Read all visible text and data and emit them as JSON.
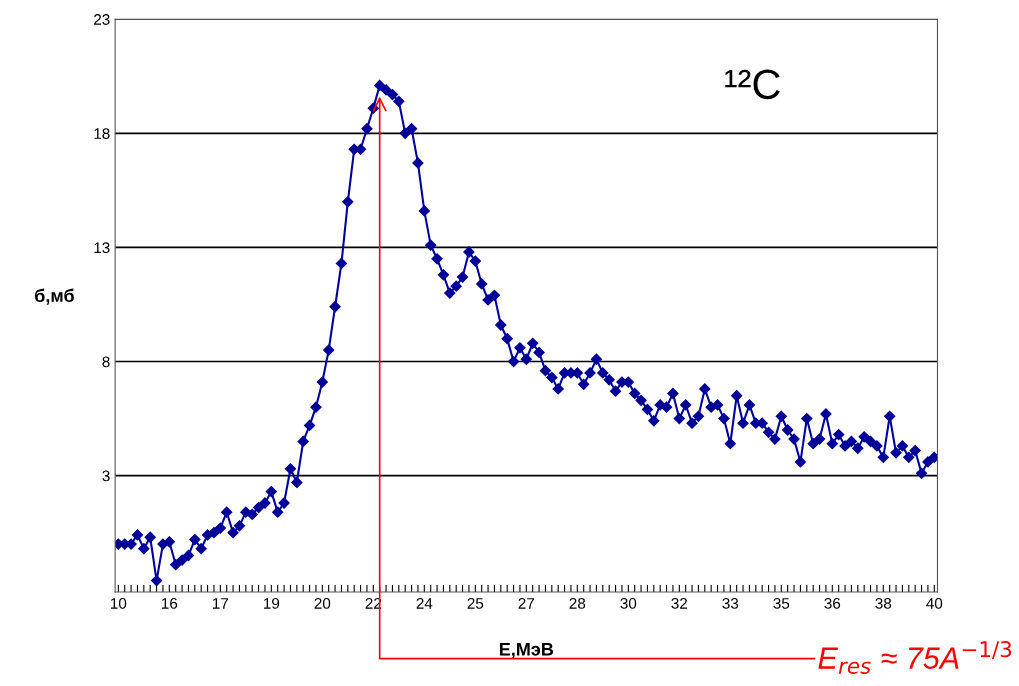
{
  "chart_data": {
    "type": "line",
    "xlabel": "Е,МэВ",
    "ylabel": "б,мб",
    "categories": [
      "10",
      null,
      null,
      null,
      null,
      null,
      null,
      null,
      "16",
      null,
      null,
      null,
      null,
      null,
      null,
      null,
      "17",
      null,
      null,
      null,
      null,
      null,
      null,
      null,
      "19",
      null,
      null,
      null,
      null,
      null,
      null,
      null,
      "20",
      null,
      null,
      null,
      null,
      null,
      null,
      null,
      "22",
      null,
      null,
      null,
      null,
      null,
      null,
      null,
      "24",
      null,
      null,
      null,
      null,
      null,
      null,
      null,
      "25",
      null,
      null,
      null,
      null,
      null,
      null,
      null,
      "27",
      null,
      null,
      null,
      null,
      null,
      null,
      null,
      "28",
      null,
      null,
      null,
      null,
      null,
      null,
      null,
      "30",
      null,
      null,
      null,
      null,
      null,
      null,
      null,
      "32",
      null,
      null,
      null,
      null,
      null,
      null,
      null,
      "33",
      null,
      null,
      null,
      null,
      null,
      null,
      null,
      "35",
      null,
      null,
      null,
      null,
      null,
      null,
      null,
      "36",
      null,
      null,
      null,
      null,
      null,
      null,
      null,
      "38",
      null,
      null,
      null,
      null,
      null,
      null,
      null,
      "40"
    ],
    "series": [
      {
        "color": "#000099",
        "values": [
          0,
          0,
          0,
          0.4,
          -0.2,
          0.3,
          -1.6,
          0,
          0.1,
          -0.9,
          -0.7,
          -0.5,
          0.2,
          -0.2,
          0.4,
          0.5,
          0.7,
          1.4,
          0.5,
          0.8,
          1.4,
          1.3,
          1.6,
          1.8,
          2.3,
          1.4,
          1.8,
          3.3,
          2.7,
          4.5,
          5.2,
          6.0,
          7.1,
          8.5,
          10.4,
          12.3,
          15.0,
          17.3,
          17.3,
          18.2,
          19.1,
          20.1,
          19.9,
          19.7,
          19.4,
          18.0,
          18.2,
          16.7,
          14.6,
          13.1,
          12.5,
          11.8,
          11.0,
          11.3,
          11.7,
          12.8,
          12.4,
          11.4,
          10.7,
          10.9,
          9.6,
          9.0,
          8.0,
          8.6,
          8.1,
          8.8,
          8.4,
          7.6,
          7.3,
          6.8,
          7.5,
          7.5,
          7.5,
          7.0,
          7.5,
          8.1,
          7.5,
          7.2,
          6.7,
          7.1,
          7.1,
          6.6,
          6.3,
          5.9,
          5.4,
          6.1,
          6.0,
          6.6,
          5.5,
          6.1,
          5.3,
          5.6,
          6.8,
          6.0,
          6.1,
          5.5,
          4.4,
          6.5,
          5.3,
          6.1,
          5.3,
          5.3,
          4.9,
          4.6,
          5.6,
          5.0,
          4.6,
          3.6,
          5.5,
          4.4,
          4.6,
          5.7,
          4.4,
          4.8,
          4.3,
          4.5,
          4.2,
          4.7,
          4.5,
          4.3,
          3.8,
          5.6,
          4.0,
          4.3,
          3.8,
          4.1,
          3.1,
          3.6,
          3.8
        ]
      }
    ],
    "ylim": [
      -2.1,
      23
    ],
    "yticks": [
      3,
      8,
      13,
      18,
      23
    ],
    "grid": "y",
    "marker": "diamond",
    "line_style": "solid",
    "legend": false,
    "annotations": [
      "¹²C",
      "E$_{res}$ ≈ 75A$^{−1/3}$"
    ]
  }
}
